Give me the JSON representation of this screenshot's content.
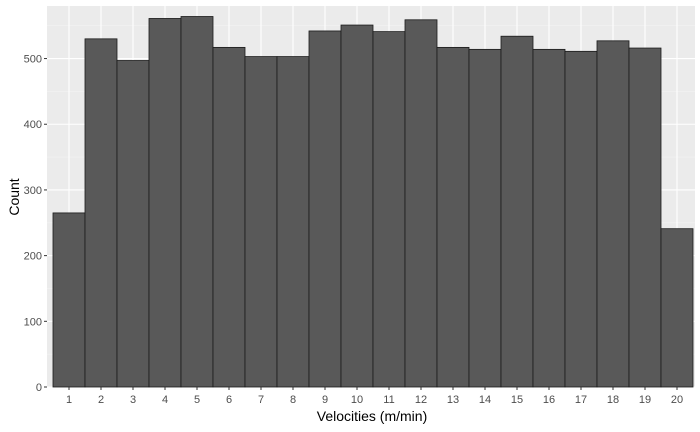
{
  "chart_data": {
    "type": "bar",
    "xlabel": "Velocities (m/min)",
    "ylabel": "Count",
    "categories": [
      "1",
      "2",
      "3",
      "4",
      "5",
      "6",
      "7",
      "8",
      "9",
      "10",
      "11",
      "12",
      "13",
      "14",
      "15",
      "16",
      "17",
      "18",
      "19",
      "20"
    ],
    "values": [
      265,
      530,
      497,
      561,
      564,
      517,
      503,
      503,
      542,
      551,
      541,
      559,
      517,
      514,
      534,
      514,
      511,
      527,
      516,
      241
    ],
    "ylim": [
      0,
      580
    ],
    "yticks": [
      0,
      100,
      200,
      300,
      400,
      500
    ],
    "grid": true,
    "legend": "none",
    "colors": {
      "panel_background": "#ebebeb",
      "grid_major": "#ffffff",
      "grid_minor": "#f3f3f3",
      "bar_fill": "#595959",
      "bar_stroke": "#1a1a1a",
      "tick_text": "#4d4d4d",
      "tick_mark": "#333333"
    }
  }
}
